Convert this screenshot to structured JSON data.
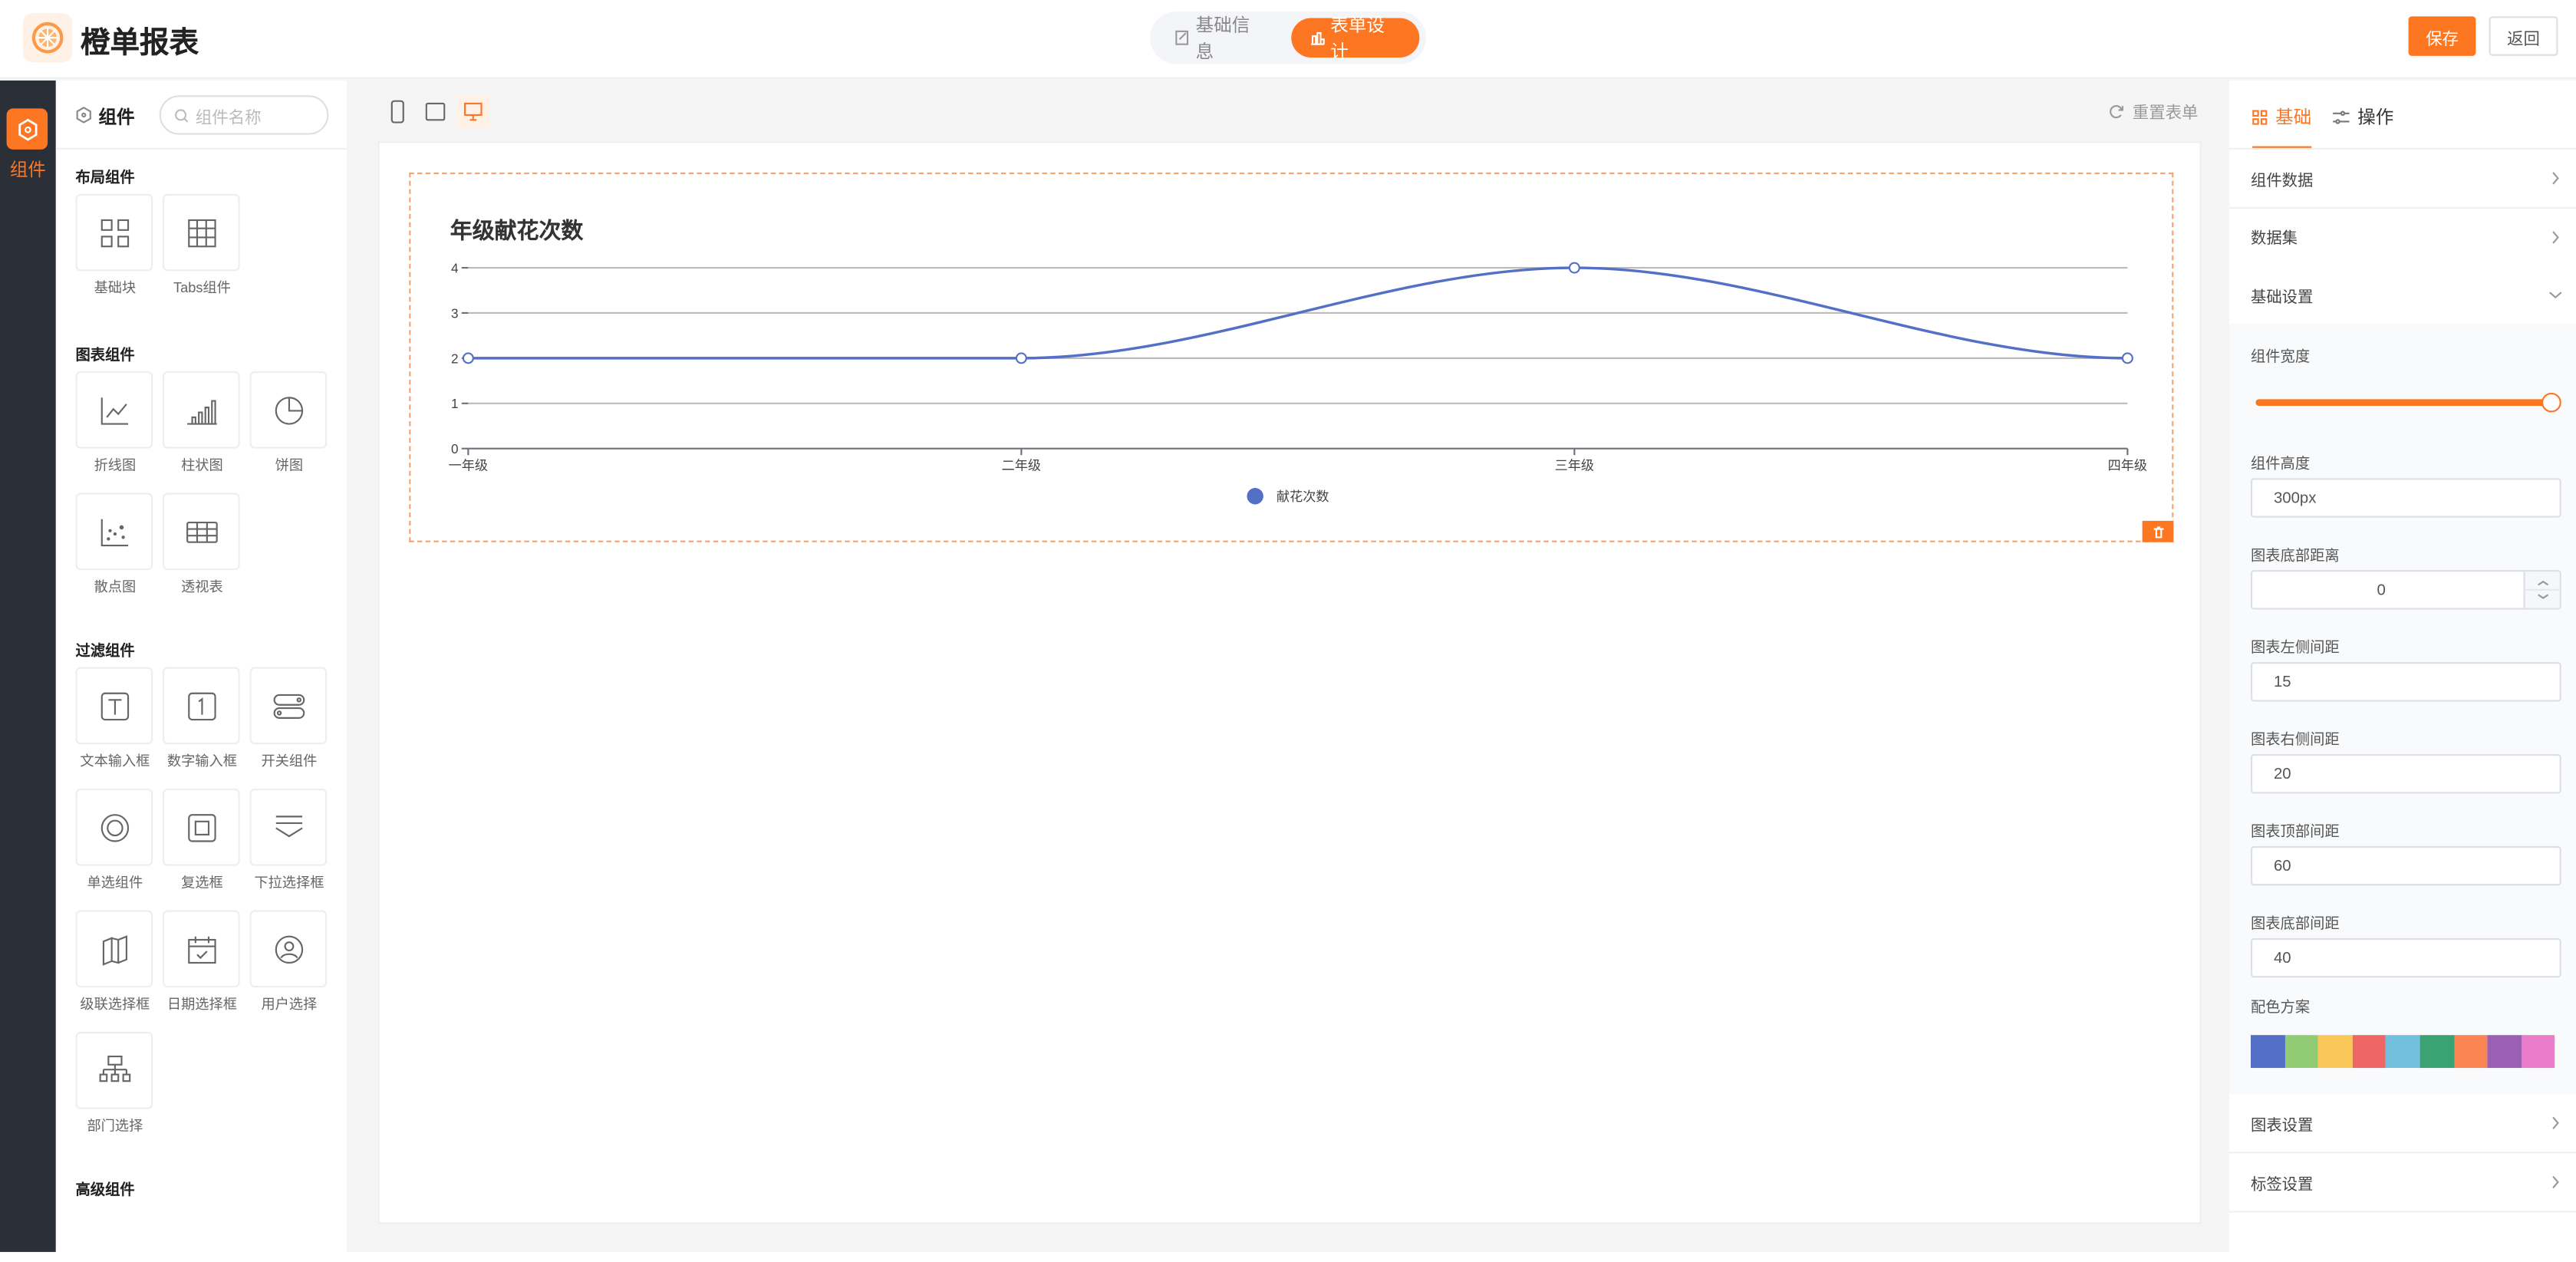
{
  "header": {
    "app_title": "橙单报表",
    "tabs": [
      {
        "label": "基础信息",
        "icon": "edit-doc-icon"
      },
      {
        "label": "表单设计",
        "icon": "chart-icon",
        "active": true
      }
    ],
    "save_label": "保存",
    "back_label": "返回"
  },
  "rail": {
    "label": "组件",
    "icon": "component-icon"
  },
  "components": {
    "title": "组件",
    "search_placeholder": "组件名称",
    "sections": [
      {
        "title": "布局组件",
        "items": [
          {
            "label": "基础块",
            "icon": "grid-icon"
          },
          {
            "label": "Tabs组件",
            "icon": "table-grid-icon"
          }
        ]
      },
      {
        "title": "图表组件",
        "items": [
          {
            "label": "折线图",
            "icon": "line-chart-icon"
          },
          {
            "label": "柱状图",
            "icon": "bar-chart-icon"
          },
          {
            "label": "饼图",
            "icon": "pie-chart-icon"
          },
          {
            "label": "散点图",
            "icon": "scatter-icon"
          },
          {
            "label": "透视表",
            "icon": "pivot-table-icon"
          }
        ]
      },
      {
        "title": "过滤组件",
        "items": [
          {
            "label": "文本输入框",
            "icon": "text-input-icon"
          },
          {
            "label": "数字输入框",
            "icon": "number-input-icon"
          },
          {
            "label": "开关组件",
            "icon": "switch-icon"
          },
          {
            "label": "单选组件",
            "icon": "radio-icon"
          },
          {
            "label": "复选框",
            "icon": "checkbox-icon"
          },
          {
            "label": "下拉选择框",
            "icon": "dropdown-icon"
          },
          {
            "label": "级联选择框",
            "icon": "cascade-icon"
          },
          {
            "label": "日期选择框",
            "icon": "calendar-icon"
          },
          {
            "label": "用户选择",
            "icon": "user-icon"
          },
          {
            "label": "部门选择",
            "icon": "org-icon"
          }
        ]
      },
      {
        "title": "高级组件",
        "items": []
      }
    ]
  },
  "canvas": {
    "reset_label": "重置表单",
    "devices": [
      "mobile",
      "tablet",
      "desktop"
    ],
    "active_device": "desktop"
  },
  "chart_data": {
    "type": "line",
    "title": "年级献花次数",
    "categories": [
      "一年级",
      "二年级",
      "三年级",
      "四年级"
    ],
    "series": [
      {
        "name": "献花次数",
        "values": [
          2,
          2,
          4,
          2
        ],
        "color": "#5470c6"
      }
    ],
    "ylim": [
      0,
      4
    ],
    "yticks": [
      0,
      1,
      2,
      3,
      4
    ],
    "smooth": true,
    "grid": true,
    "legend": "bottom"
  },
  "props": {
    "tabs": [
      {
        "label": "基础",
        "icon": "grid-icon",
        "active": true
      },
      {
        "label": "操作",
        "icon": "sliders-icon"
      }
    ],
    "rows_top": [
      "组件数据",
      "数据集",
      "基础设置"
    ],
    "width_label": "组件宽度",
    "width_value_percent": 100,
    "fields": [
      {
        "label": "组件高度",
        "value": "300px"
      },
      {
        "label": "图表底部距离",
        "value": "0"
      },
      {
        "label": "图表左侧间距",
        "value": "15"
      },
      {
        "label": "图表右侧间距",
        "value": "20"
      },
      {
        "label": "图表顶部间距",
        "value": "60"
      },
      {
        "label": "图表底部间距",
        "value": "40"
      }
    ],
    "palette_label": "配色方案",
    "palette": [
      "#5470c6",
      "#91cc75",
      "#fac858",
      "#ee6666",
      "#73c0de",
      "#3ba272",
      "#fc8452",
      "#9a60b4",
      "#ea7ccc"
    ],
    "rows_bottom": [
      "图表设置",
      "标签设置"
    ]
  },
  "accent": "#fd7622"
}
